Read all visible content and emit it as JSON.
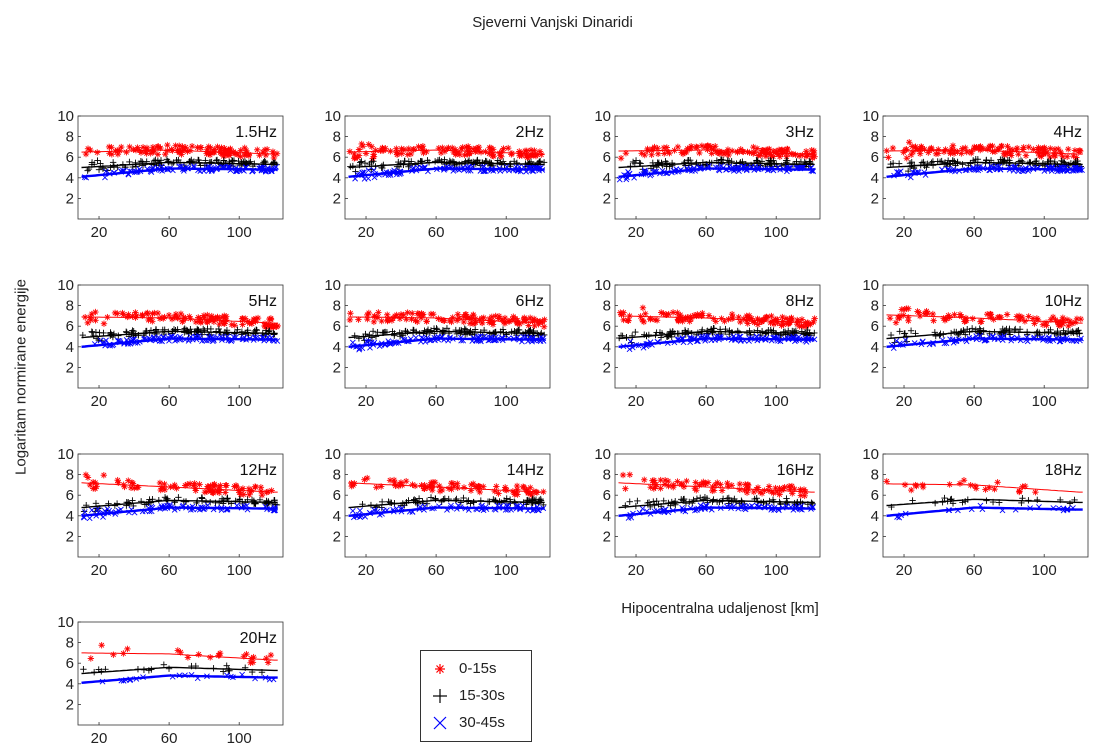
{
  "title": "Sjeverni Vanjski Dinaridi",
  "ylabel": "Logaritam normirane energije",
  "xlabel": "Hipocentralna udaljenost [km]",
  "legend": [
    {
      "label": "0-15s",
      "color": "#ff0000",
      "marker": "star"
    },
    {
      "label": "15-30s",
      "color": "#000000",
      "marker": "plus"
    },
    {
      "label": "30-45s",
      "color": "#0000ff",
      "marker": "x"
    }
  ],
  "chart_data": {
    "type": "scatter",
    "xticks": [
      20,
      60,
      100
    ],
    "yticks": [
      2,
      4,
      6,
      8,
      10
    ],
    "xlim": [
      8,
      125
    ],
    "ylim": [
      0,
      10
    ],
    "panels": [
      {
        "label": "1.5Hz",
        "density": "high",
        "series": [
          {
            "name": "0-15s",
            "fit": [
              [
                10,
                6.5
              ],
              [
                60,
                6.7
              ],
              [
                120,
                6.3
              ]
            ]
          },
          {
            "name": "15-30s",
            "fit": [
              [
                10,
                5.0
              ],
              [
                60,
                5.5
              ],
              [
                120,
                5.3
              ]
            ]
          },
          {
            "name": "30-45s",
            "fit": [
              [
                10,
                4.1
              ],
              [
                60,
                4.9
              ],
              [
                120,
                4.8
              ]
            ]
          }
        ]
      },
      {
        "label": "2Hz",
        "density": "high",
        "series": [
          {
            "name": "0-15s",
            "fit": [
              [
                10,
                6.5
              ],
              [
                60,
                6.7
              ],
              [
                120,
                6.3
              ]
            ]
          },
          {
            "name": "15-30s",
            "fit": [
              [
                10,
                5.0
              ],
              [
                60,
                5.5
              ],
              [
                120,
                5.3
              ]
            ]
          },
          {
            "name": "30-45s",
            "fit": [
              [
                10,
                4.1
              ],
              [
                60,
                4.9
              ],
              [
                120,
                4.8
              ]
            ]
          }
        ]
      },
      {
        "label": "3Hz",
        "density": "high",
        "series": [
          {
            "name": "0-15s",
            "fit": [
              [
                10,
                6.6
              ],
              [
                60,
                6.7
              ],
              [
                120,
                6.3
              ]
            ]
          },
          {
            "name": "15-30s",
            "fit": [
              [
                10,
                5.0
              ],
              [
                60,
                5.5
              ],
              [
                120,
                5.3
              ]
            ]
          },
          {
            "name": "30-45s",
            "fit": [
              [
                10,
                4.1
              ],
              [
                60,
                4.9
              ],
              [
                120,
                4.8
              ]
            ]
          }
        ]
      },
      {
        "label": "4Hz",
        "density": "high",
        "series": [
          {
            "name": "0-15s",
            "fit": [
              [
                10,
                6.6
              ],
              [
                60,
                6.7
              ],
              [
                120,
                6.3
              ]
            ]
          },
          {
            "name": "15-30s",
            "fit": [
              [
                10,
                5.0
              ],
              [
                60,
                5.5
              ],
              [
                120,
                5.3
              ]
            ]
          },
          {
            "name": "30-45s",
            "fit": [
              [
                10,
                4.1
              ],
              [
                60,
                4.9
              ],
              [
                120,
                4.8
              ]
            ]
          }
        ]
      },
      {
        "label": "5Hz",
        "density": "high",
        "series": [
          {
            "name": "0-15s",
            "fit": [
              [
                10,
                6.9
              ],
              [
                60,
                6.8
              ],
              [
                120,
                6.3
              ]
            ]
          },
          {
            "name": "15-30s",
            "fit": [
              [
                10,
                4.9
              ],
              [
                60,
                5.5
              ],
              [
                120,
                5.3
              ]
            ]
          },
          {
            "name": "30-45s",
            "fit": [
              [
                10,
                4.0
              ],
              [
                60,
                4.8
              ],
              [
                120,
                4.7
              ]
            ]
          }
        ]
      },
      {
        "label": "6Hz",
        "density": "high",
        "series": [
          {
            "name": "0-15s",
            "fit": [
              [
                10,
                6.9
              ],
              [
                60,
                6.8
              ],
              [
                120,
                6.3
              ]
            ]
          },
          {
            "name": "15-30s",
            "fit": [
              [
                10,
                4.9
              ],
              [
                60,
                5.5
              ],
              [
                120,
                5.3
              ]
            ]
          },
          {
            "name": "30-45s",
            "fit": [
              [
                10,
                4.0
              ],
              [
                60,
                4.8
              ],
              [
                120,
                4.7
              ]
            ]
          }
        ]
      },
      {
        "label": "8Hz",
        "density": "high",
        "series": [
          {
            "name": "0-15s",
            "fit": [
              [
                10,
                7.0
              ],
              [
                60,
                6.8
              ],
              [
                120,
                6.3
              ]
            ]
          },
          {
            "name": "15-30s",
            "fit": [
              [
                10,
                4.8
              ],
              [
                60,
                5.5
              ],
              [
                120,
                5.3
              ]
            ]
          },
          {
            "name": "30-45s",
            "fit": [
              [
                10,
                4.0
              ],
              [
                60,
                4.8
              ],
              [
                120,
                4.7
              ]
            ]
          }
        ]
      },
      {
        "label": "10Hz",
        "density": "medium",
        "series": [
          {
            "name": "0-15s",
            "fit": [
              [
                10,
                7.1
              ],
              [
                60,
                6.8
              ],
              [
                120,
                6.3
              ]
            ]
          },
          {
            "name": "15-30s",
            "fit": [
              [
                10,
                4.8
              ],
              [
                60,
                5.5
              ],
              [
                120,
                5.3
              ]
            ]
          },
          {
            "name": "30-45s",
            "fit": [
              [
                10,
                4.0
              ],
              [
                60,
                4.8
              ],
              [
                120,
                4.7
              ]
            ]
          }
        ]
      },
      {
        "label": "12Hz",
        "density": "medium",
        "series": [
          {
            "name": "0-15s",
            "fit": [
              [
                10,
                7.2
              ],
              [
                60,
                6.8
              ],
              [
                120,
                6.3
              ]
            ]
          },
          {
            "name": "15-30s",
            "fit": [
              [
                10,
                4.8
              ],
              [
                60,
                5.5
              ],
              [
                120,
                5.3
              ]
            ]
          },
          {
            "name": "30-45s",
            "fit": [
              [
                10,
                4.0
              ],
              [
                60,
                4.8
              ],
              [
                120,
                4.7
              ]
            ]
          }
        ]
      },
      {
        "label": "14Hz",
        "density": "medium",
        "series": [
          {
            "name": "0-15s",
            "fit": [
              [
                10,
                7.2
              ],
              [
                60,
                6.8
              ],
              [
                120,
                6.3
              ]
            ]
          },
          {
            "name": "15-30s",
            "fit": [
              [
                10,
                4.8
              ],
              [
                60,
                5.5
              ],
              [
                120,
                5.3
              ]
            ]
          },
          {
            "name": "30-45s",
            "fit": [
              [
                10,
                4.0
              ],
              [
                60,
                4.8
              ],
              [
                120,
                4.7
              ]
            ]
          }
        ]
      },
      {
        "label": "16Hz",
        "density": "medium",
        "series": [
          {
            "name": "0-15s",
            "fit": [
              [
                10,
                7.2
              ],
              [
                60,
                6.8
              ],
              [
                120,
                6.3
              ]
            ]
          },
          {
            "name": "15-30s",
            "fit": [
              [
                10,
                4.8
              ],
              [
                60,
                5.5
              ],
              [
                120,
                5.3
              ]
            ]
          },
          {
            "name": "30-45s",
            "fit": [
              [
                10,
                4.0
              ],
              [
                60,
                4.8
              ],
              [
                120,
                4.7
              ]
            ]
          }
        ]
      },
      {
        "label": "18Hz",
        "density": "low",
        "series": [
          {
            "name": "0-15s",
            "fit": [
              [
                10,
                7.1
              ],
              [
                60,
                7.0
              ],
              [
                120,
                6.3
              ]
            ]
          },
          {
            "name": "15-30s",
            "fit": [
              [
                10,
                5.0
              ],
              [
                60,
                5.6
              ],
              [
                120,
                5.3
              ]
            ]
          },
          {
            "name": "30-45s",
            "fit": [
              [
                10,
                4.0
              ],
              [
                60,
                4.8
              ],
              [
                120,
                4.6
              ]
            ]
          }
        ]
      },
      {
        "label": "20Hz",
        "density": "low",
        "series": [
          {
            "name": "0-15s",
            "fit": [
              [
                10,
                7.0
              ],
              [
                60,
                6.9
              ],
              [
                120,
                6.3
              ]
            ]
          },
          {
            "name": "15-30s",
            "fit": [
              [
                10,
                5.0
              ],
              [
                60,
                5.6
              ],
              [
                120,
                5.3
              ]
            ]
          },
          {
            "name": "30-45s",
            "fit": [
              [
                10,
                4.1
              ],
              [
                60,
                4.8
              ],
              [
                120,
                4.6
              ]
            ]
          }
        ]
      }
    ]
  }
}
